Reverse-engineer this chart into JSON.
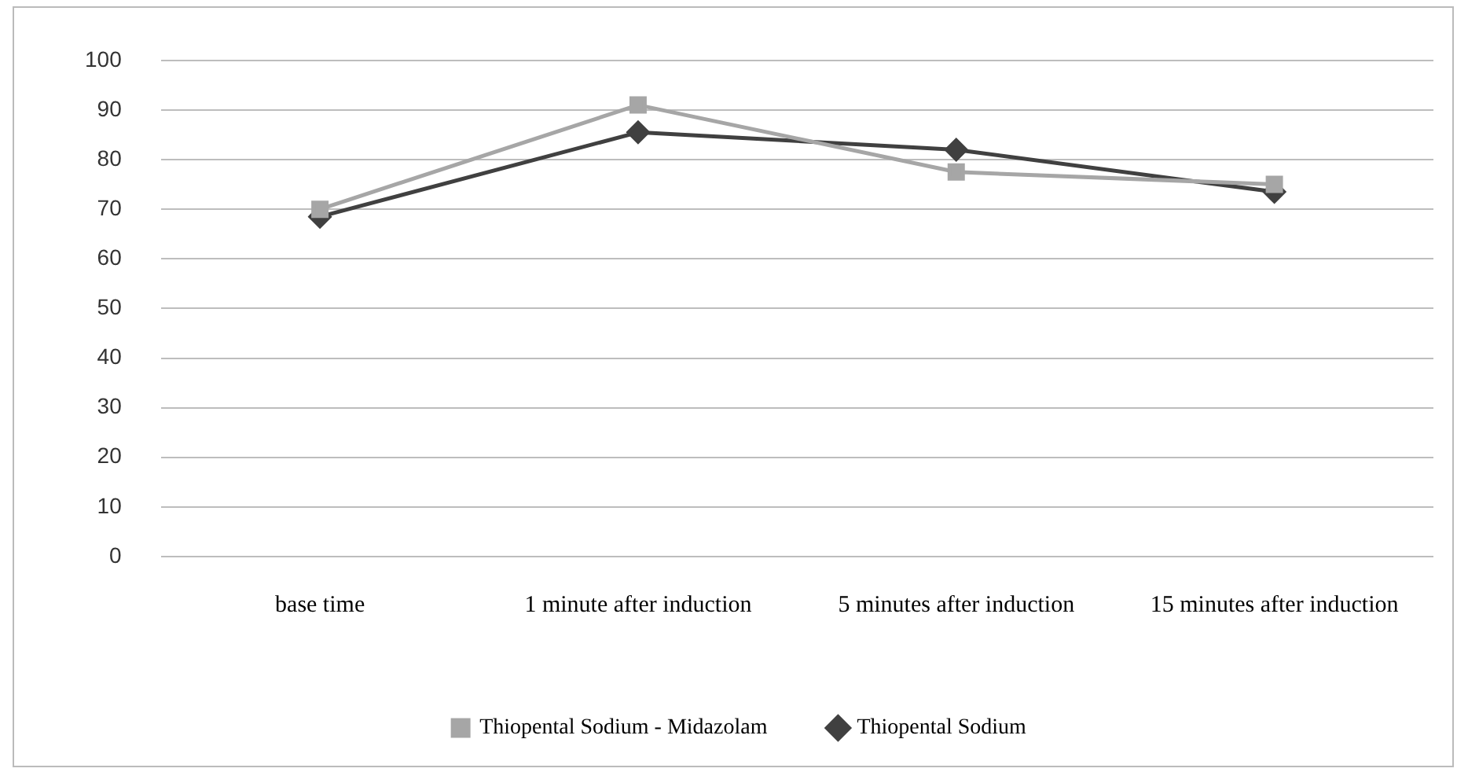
{
  "chart_data": {
    "type": "line",
    "categories": [
      "base time",
      "1 minute after induction",
      "5 minutes after induction",
      "15 minutes after induction"
    ],
    "series": [
      {
        "name": "Thiopental Sodium",
        "color": "#404040",
        "marker": "diamond",
        "values": [
          68.5,
          85.5,
          82,
          73.5
        ]
      },
      {
        "name": "Thiopental Sodium - Midazolam",
        "color": "#a6a6a6",
        "marker": "square",
        "values": [
          70,
          91,
          77.5,
          75
        ]
      }
    ],
    "ylim": [
      0,
      100
    ],
    "yticks": [
      0,
      10,
      20,
      30,
      40,
      50,
      60,
      70,
      80,
      90,
      100
    ],
    "grid": "y",
    "legend": "bottom"
  }
}
